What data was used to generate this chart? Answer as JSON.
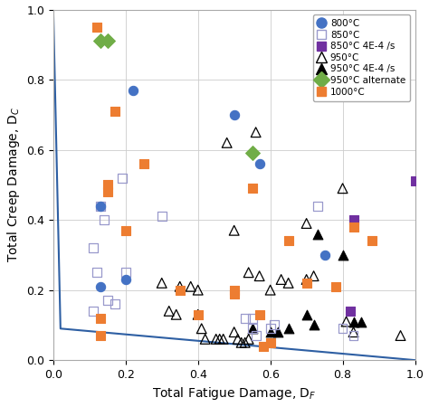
{
  "line_x": [
    0.0,
    0.02,
    1.0
  ],
  "line_y": [
    1.0,
    0.09,
    0.0
  ],
  "line_color": "#2E5FA3",
  "series": {
    "800C": {
      "color": "#4472C4",
      "marker": "o",
      "filled": true,
      "label": "800°C",
      "points": [
        [
          0.13,
          0.44
        ],
        [
          0.13,
          0.21
        ],
        [
          0.2,
          0.23
        ],
        [
          0.22,
          0.77
        ],
        [
          0.5,
          0.7
        ],
        [
          0.57,
          0.56
        ],
        [
          0.75,
          0.3
        ]
      ]
    },
    "850C_open": {
      "color": "#9999CC",
      "marker": "s",
      "filled": false,
      "label": "850°C",
      "points": [
        [
          0.11,
          0.32
        ],
        [
          0.11,
          0.14
        ],
        [
          0.12,
          0.25
        ],
        [
          0.13,
          0.44
        ],
        [
          0.14,
          0.4
        ],
        [
          0.15,
          0.17
        ],
        [
          0.17,
          0.16
        ],
        [
          0.19,
          0.52
        ],
        [
          0.2,
          0.25
        ],
        [
          0.3,
          0.41
        ],
        [
          0.53,
          0.12
        ],
        [
          0.55,
          0.12
        ],
        [
          0.55,
          0.09
        ],
        [
          0.56,
          0.07
        ],
        [
          0.6,
          0.09
        ],
        [
          0.61,
          0.1
        ],
        [
          0.73,
          0.44
        ],
        [
          0.8,
          0.09
        ],
        [
          0.83,
          0.07
        ]
      ]
    },
    "850C_filled": {
      "color": "#7030A0",
      "marker": "s",
      "filled": true,
      "label": "850°C 4E-4 /s",
      "points": [
        [
          0.82,
          0.14
        ],
        [
          0.83,
          0.4
        ],
        [
          1.0,
          0.51
        ]
      ]
    },
    "950C_open": {
      "color": "#000000",
      "marker": "^",
      "filled": false,
      "label": "950°C",
      "points": [
        [
          0.3,
          0.22
        ],
        [
          0.32,
          0.14
        ],
        [
          0.34,
          0.13
        ],
        [
          0.35,
          0.21
        ],
        [
          0.38,
          0.21
        ],
        [
          0.4,
          0.2
        ],
        [
          0.4,
          0.13
        ],
        [
          0.41,
          0.09
        ],
        [
          0.42,
          0.06
        ],
        [
          0.45,
          0.06
        ],
        [
          0.46,
          0.06
        ],
        [
          0.47,
          0.06
        ],
        [
          0.48,
          0.62
        ],
        [
          0.5,
          0.37
        ],
        [
          0.5,
          0.08
        ],
        [
          0.51,
          0.06
        ],
        [
          0.52,
          0.05
        ],
        [
          0.53,
          0.05
        ],
        [
          0.54,
          0.25
        ],
        [
          0.54,
          0.06
        ],
        [
          0.56,
          0.65
        ],
        [
          0.57,
          0.24
        ],
        [
          0.6,
          0.2
        ],
        [
          0.63,
          0.23
        ],
        [
          0.65,
          0.22
        ],
        [
          0.7,
          0.23
        ],
        [
          0.7,
          0.39
        ],
        [
          0.72,
          0.24
        ],
        [
          0.8,
          0.49
        ],
        [
          0.81,
          0.11
        ],
        [
          0.83,
          0.08
        ],
        [
          0.96,
          0.07
        ]
      ]
    },
    "950C_filled": {
      "color": "#000000",
      "marker": "^",
      "filled": true,
      "label": "950°C 4E-4 /s",
      "points": [
        [
          0.55,
          0.09
        ],
        [
          0.6,
          0.08
        ],
        [
          0.62,
          0.08
        ],
        [
          0.65,
          0.09
        ],
        [
          0.7,
          0.13
        ],
        [
          0.72,
          0.1
        ],
        [
          0.73,
          0.36
        ],
        [
          0.8,
          0.3
        ],
        [
          0.83,
          0.11
        ],
        [
          0.85,
          0.11
        ]
      ]
    },
    "950C_alternate": {
      "color": "#70AD47",
      "marker": "D",
      "filled": true,
      "label": "950°C alternate",
      "points": [
        [
          0.13,
          0.91
        ],
        [
          0.15,
          0.91
        ],
        [
          0.55,
          0.59
        ]
      ]
    },
    "1000C": {
      "color": "#ED7D31",
      "marker": "s",
      "filled": true,
      "label": "1000°C",
      "points": [
        [
          0.12,
          0.95
        ],
        [
          0.13,
          0.12
        ],
        [
          0.13,
          0.07
        ],
        [
          0.15,
          0.5
        ],
        [
          0.15,
          0.48
        ],
        [
          0.17,
          0.71
        ],
        [
          0.2,
          0.37
        ],
        [
          0.25,
          0.56
        ],
        [
          0.35,
          0.2
        ],
        [
          0.4,
          0.13
        ],
        [
          0.5,
          0.2
        ],
        [
          0.5,
          0.19
        ],
        [
          0.55,
          0.49
        ],
        [
          0.57,
          0.13
        ],
        [
          0.58,
          0.04
        ],
        [
          0.6,
          0.05
        ],
        [
          0.65,
          0.34
        ],
        [
          0.7,
          0.22
        ],
        [
          0.78,
          0.21
        ],
        [
          0.83,
          0.38
        ],
        [
          0.88,
          0.34
        ]
      ]
    }
  },
  "xlim": [
    0.0,
    1.0
  ],
  "ylim": [
    0.0,
    1.0
  ],
  "xticks": [
    0.0,
    0.2,
    0.4,
    0.6,
    0.8,
    1.0
  ],
  "yticks": [
    0.0,
    0.2,
    0.4,
    0.6,
    0.8,
    1.0
  ],
  "xlabel": "Total Fatigue Damage, D$_F$",
  "ylabel": "Total Creep Damage, D$_C$",
  "marker_sizes": {
    "o": 55,
    "s": 50,
    "^": 60,
    "D": 65
  },
  "legend_marker_sizes": {
    "o": 8,
    "s": 7,
    "^": 9,
    "D": 9
  },
  "legend_loc": "upper right",
  "grid_color": "#cccccc",
  "background_color": "#ffffff",
  "spine_color": "#aaaaaa",
  "tick_labelsize": 9,
  "axis_labelsize": 10
}
